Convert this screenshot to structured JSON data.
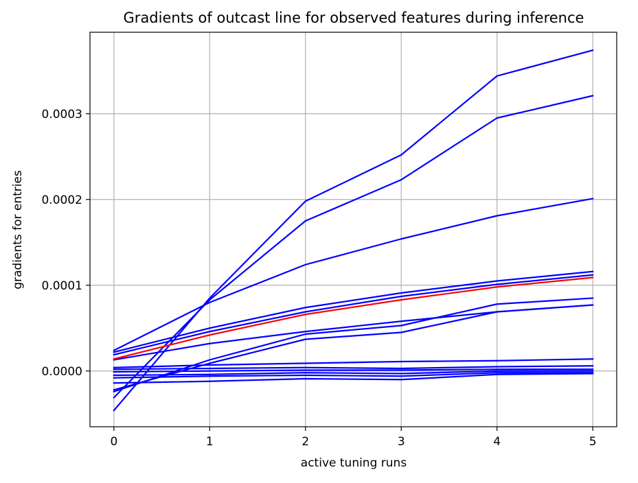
{
  "chart_data": {
    "type": "line",
    "title": "Gradients of outcast line for observed features during inference",
    "xlabel": "active tuning runs",
    "ylabel": "gradients for entries",
    "xlim": [
      -0.25,
      5.25
    ],
    "ylim": [
      -6.5e-05,
      0.000395
    ],
    "x_ticks": [
      0,
      1,
      2,
      3,
      4,
      5
    ],
    "x_tick_labels": [
      "0",
      "1",
      "2",
      "3",
      "4",
      "5"
    ],
    "y_ticks": [
      0.0,
      0.0001,
      0.0002,
      0.0003
    ],
    "y_tick_labels": [
      "0.0000",
      "0.0001",
      "0.0002",
      "0.0003"
    ],
    "grid": true,
    "legend": false,
    "colors": {
      "default": "#0000ff",
      "highlight": "#ff0000"
    },
    "x": [
      0,
      1,
      2,
      3,
      4,
      5
    ],
    "series": [
      {
        "color": "#0000ff",
        "values": [
          -4.6e-05,
          8.5e-05,
          0.000198,
          0.000252,
          0.000344,
          0.000374
        ]
      },
      {
        "color": "#0000ff",
        "values": [
          -3.1e-05,
          8.3e-05,
          0.000175,
          0.000223,
          0.000295,
          0.000321
        ]
      },
      {
        "color": "#0000ff",
        "values": [
          2.4e-05,
          8e-05,
          0.000124,
          0.000154,
          0.000181,
          0.000201
        ]
      },
      {
        "color": "#0000ff",
        "values": [
          2.2e-05,
          5e-05,
          7.4e-05,
          9.1e-05,
          0.000105,
          0.000116
        ]
      },
      {
        "color": "#0000ff",
        "values": [
          1.9e-05,
          4.6e-05,
          6.9e-05,
          8.7e-05,
          0.000101,
          0.000112
        ]
      },
      {
        "color": "#0000ff",
        "values": [
          1.3e-05,
          3.2e-05,
          4.6e-05,
          5.8e-05,
          6.9e-05,
          7.7e-05
        ]
      },
      {
        "color": "#0000ff",
        "values": [
          -2.4e-05,
          1.3e-05,
          4.3e-05,
          5.3e-05,
          7.8e-05,
          8.5e-05
        ]
      },
      {
        "color": "#0000ff",
        "values": [
          -2.2e-05,
          9e-06,
          3.7e-05,
          4.5e-05,
          6.9e-05,
          7.7e-05
        ]
      },
      {
        "color": "#0000ff",
        "values": [
          4e-06,
          7e-06,
          9e-06,
          1.1e-05,
          1.2e-05,
          1.4e-05
        ]
      },
      {
        "color": "#0000ff",
        "values": [
          2e-06,
          3e-06,
          4e-06,
          3e-06,
          5e-06,
          6e-06
        ]
      },
      {
        "color": "#0000ff",
        "values": [
          -1e-06,
          0.0,
          1e-06,
          1e-06,
          2e-06,
          2e-06
        ]
      },
      {
        "color": "#0000ff",
        "values": [
          -5e-06,
          -4e-06,
          -2e-06,
          -3e-06,
          0.0,
          0.0
        ]
      },
      {
        "color": "#0000ff",
        "values": [
          -8e-06,
          -6e-06,
          -5e-06,
          -6e-06,
          -2e-06,
          -2e-06
        ]
      },
      {
        "color": "#0000ff",
        "values": [
          -1.4e-05,
          -1.2e-05,
          -9e-06,
          -1e-05,
          -4e-06,
          -3e-06
        ]
      },
      {
        "color": "#ff0000",
        "values": [
          1.4e-05,
          4.2e-05,
          6.6e-05,
          8.3e-05,
          9.8e-05,
          0.000109
        ]
      }
    ]
  }
}
